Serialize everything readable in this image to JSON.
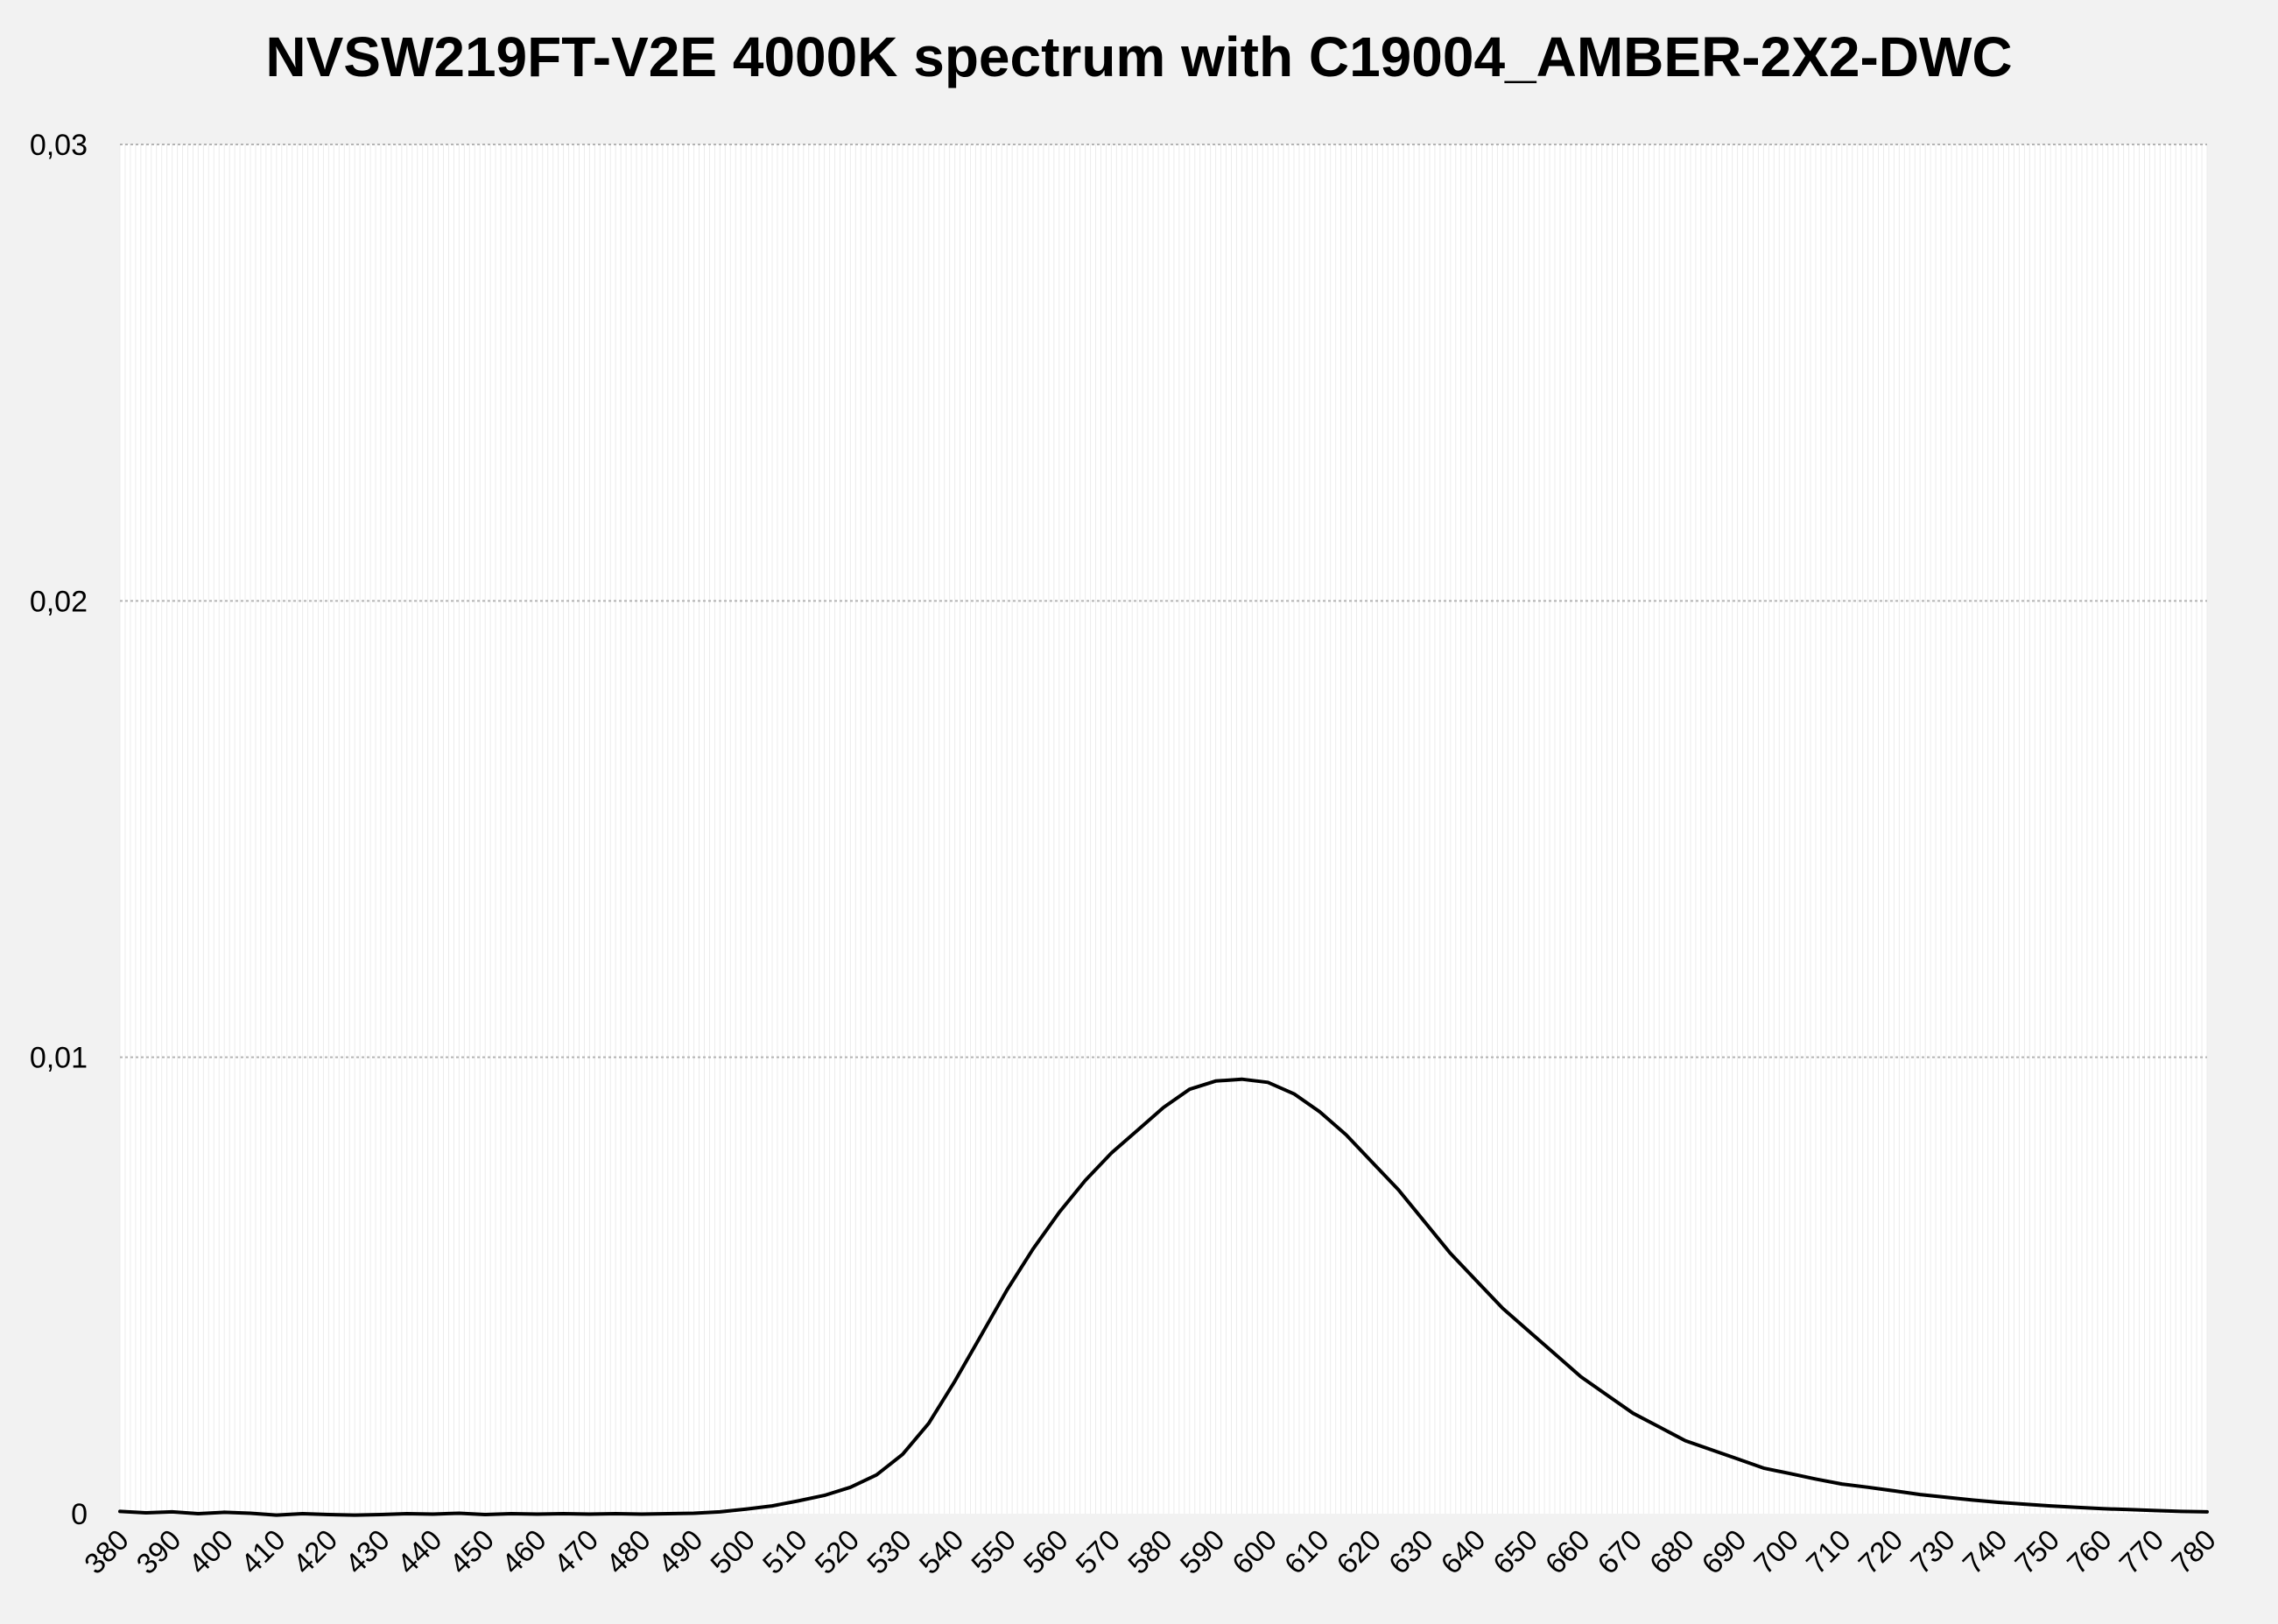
{
  "chart_data": {
    "type": "line",
    "title": "NVSW219FT-V2E 4000K spectrum with C19004_AMBER-2X2-DWC",
    "xlabel": "",
    "ylabel": "",
    "xlim": [
      380,
      780
    ],
    "ylim": [
      0,
      0.03
    ],
    "x_ticks": [
      "380",
      "390",
      "400",
      "410",
      "420",
      "430",
      "440",
      "450",
      "460",
      "470",
      "480",
      "490",
      "500",
      "510",
      "520",
      "530",
      "540",
      "550",
      "560",
      "570",
      "580",
      "590",
      "600",
      "610",
      "620",
      "630",
      "640",
      "650",
      "660",
      "670",
      "680",
      "690",
      "700",
      "710",
      "720",
      "730",
      "740",
      "750",
      "760",
      "770",
      "780"
    ],
    "y_ticks": [
      "0",
      "0,01",
      "0,02",
      "0,03"
    ],
    "grid": {
      "horizontal_major": true,
      "vertical_minor": true
    },
    "legend": "none",
    "line_color": "#000000",
    "series": [
      {
        "x": [
          380,
          385,
          390,
          395,
          400,
          405,
          410,
          415,
          420,
          425,
          430,
          435,
          440,
          445,
          450,
          455,
          460,
          465,
          470,
          475,
          480,
          485,
          490,
          495,
          500,
          505,
          510,
          515,
          520,
          525,
          530,
          535,
          540,
          545,
          550,
          555,
          560,
          565,
          570,
          575,
          580,
          585,
          590,
          595,
          600,
          605,
          610,
          615,
          620,
          625,
          630,
          635,
          640,
          645,
          650,
          655,
          660,
          665,
          670,
          675,
          680,
          685,
          690,
          695,
          700,
          705,
          710,
          715,
          720,
          725,
          730,
          735,
          740,
          745,
          750,
          755,
          760,
          765,
          770,
          775,
          780
        ],
        "y": [
          5e-05,
          2e-05,
          4e-05,
          0.0,
          3e-05,
          1e-05,
          -3e-05,
          0.0,
          -2e-05,
          -3e-05,
          -2e-05,
          0.0,
          -1e-05,
          1e-05,
          -2e-05,
          0.0,
          -1e-05,
          0.0,
          -1e-05,
          0.0,
          -1e-05,
          0.0,
          1e-05,
          4e-05,
          0.0001,
          0.00017,
          0.00028,
          0.0004,
          0.00058,
          0.00085,
          0.0013,
          0.00198,
          0.0029,
          0.0039,
          0.0049,
          0.0058,
          0.0066,
          0.0073,
          0.0079,
          0.0084,
          0.0089,
          0.0093,
          0.00948,
          0.00952,
          0.00945,
          0.0092,
          0.0088,
          0.0083,
          0.0077,
          0.0071,
          0.0064,
          0.0057,
          0.0051,
          0.0045,
          0.004,
          0.0035,
          0.003,
          0.0026,
          0.0022,
          0.0019,
          0.0016,
          0.0014,
          0.0012,
          0.001,
          0.00088,
          0.00076,
          0.00065,
          0.00058,
          0.0005,
          0.00042,
          0.00036,
          0.0003,
          0.00025,
          0.00021,
          0.00017,
          0.00014,
          0.00011,
          9e-05,
          7e-05,
          5e-05,
          4e-05
        ]
      }
    ]
  }
}
